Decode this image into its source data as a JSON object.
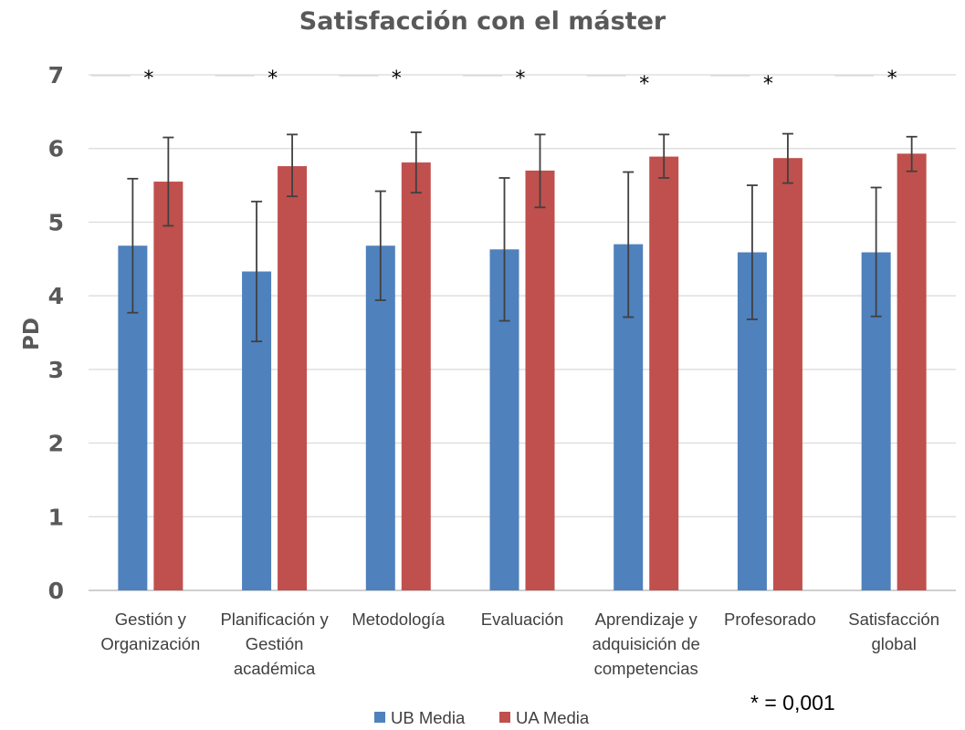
{
  "chart_data": {
    "type": "bar",
    "title": "Satisfacción con el máster",
    "ylabel": "PD",
    "xlabel": "",
    "ylim": [
      0,
      7
    ],
    "yticks": [
      0,
      1,
      2,
      3,
      4,
      5,
      6,
      7
    ],
    "grid": true,
    "categories": [
      [
        "Gestión y",
        "Organización"
      ],
      [
        "Planificación y",
        "Gestión",
        "académica"
      ],
      [
        "Metodología"
      ],
      [
        "Evaluación"
      ],
      [
        "Aprendizaje y",
        "adquisición de",
        "competencias"
      ],
      [
        "Profesorado"
      ],
      [
        "Satisfacción",
        "global"
      ]
    ],
    "series": [
      {
        "name": "UB Media",
        "color": "#4f81bd",
        "values": [
          4.68,
          4.33,
          4.68,
          4.63,
          4.7,
          4.59,
          4.59
        ],
        "error_low": [
          3.77,
          3.38,
          3.94,
          3.66,
          3.71,
          3.68,
          3.72
        ],
        "error_high": [
          5.59,
          5.28,
          5.42,
          5.6,
          5.68,
          5.5,
          5.47
        ]
      },
      {
        "name": "UA Media",
        "color": "#c0504d",
        "values": [
          5.55,
          5.76,
          5.81,
          5.7,
          5.89,
          5.87,
          5.93
        ],
        "error_low": [
          4.95,
          5.35,
          5.4,
          5.2,
          5.6,
          5.53,
          5.69
        ],
        "error_high": [
          6.15,
          6.19,
          6.22,
          6.19,
          6.19,
          6.2,
          6.16
        ]
      }
    ],
    "significance_marks": [
      "*",
      "*",
      "*",
      "*",
      "*",
      "*",
      "*"
    ],
    "annotation": "* =  0,001",
    "legend": {
      "placement": "bottom"
    }
  }
}
